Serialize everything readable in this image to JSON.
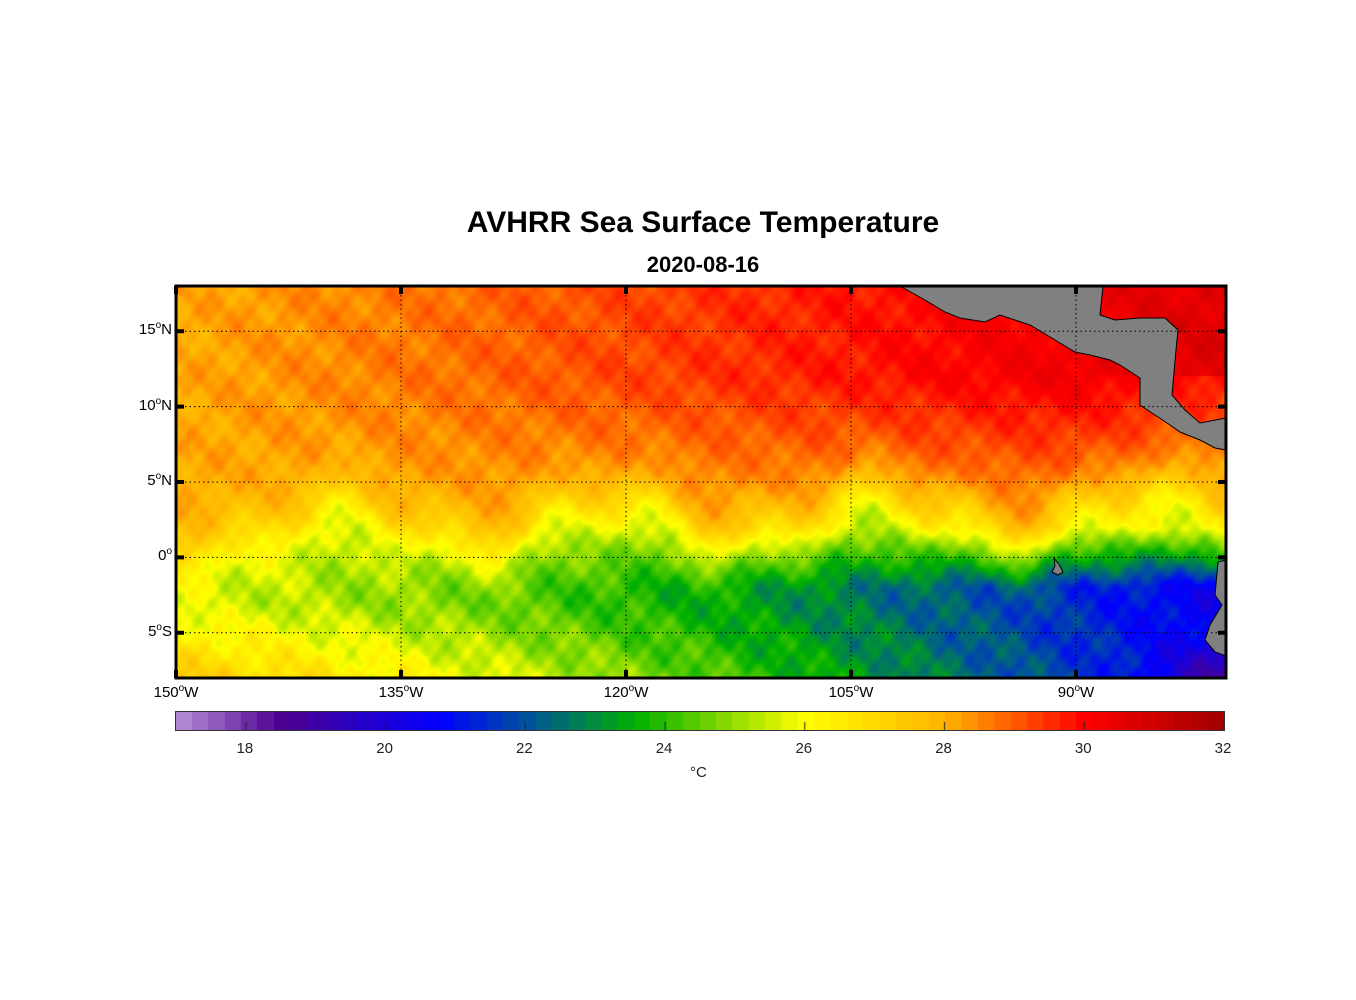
{
  "title": "AVHRR Sea Surface Temperature",
  "subtitle": "2020-08-16",
  "chart_data": {
    "type": "heatmap",
    "title": "AVHRR Sea Surface Temperature",
    "subtitle": "2020-08-16",
    "lon_range": [
      -150,
      -80
    ],
    "lat_range": [
      -8,
      18
    ],
    "x_ticks": [
      {
        "value": -150,
        "label": "150",
        "suffix": "W"
      },
      {
        "value": -135,
        "label": "135",
        "suffix": "W"
      },
      {
        "value": -120,
        "label": "120",
        "suffix": "W"
      },
      {
        "value": -105,
        "label": "105",
        "suffix": "W"
      },
      {
        "value": -90,
        "label": "90",
        "suffix": "W"
      }
    ],
    "y_ticks": [
      {
        "value": 15,
        "label": "15",
        "suffix": "N"
      },
      {
        "value": 10,
        "label": "10",
        "suffix": "N"
      },
      {
        "value": 5,
        "label": "5",
        "suffix": "N"
      },
      {
        "value": 0,
        "label": "0",
        "suffix": ""
      },
      {
        "value": -5,
        "label": "5",
        "suffix": "S"
      }
    ],
    "grid": true,
    "colorbar": {
      "range": [
        17,
        32
      ],
      "ticks": [
        "18",
        "20",
        "22",
        "24",
        "26",
        "28",
        "30",
        "32"
      ],
      "unit": "°C",
      "position": "bottom",
      "stops": [
        [
          17,
          "#b890d8"
        ],
        [
          18.5,
          "#4e0090"
        ],
        [
          20.8,
          "#0000ff"
        ],
        [
          22,
          "#0050a0"
        ],
        [
          23.6,
          "#00b000"
        ],
        [
          26,
          "#ffff00"
        ],
        [
          28,
          "#ffb400"
        ],
        [
          30,
          "#ff0000"
        ],
        [
          32,
          "#a00000"
        ]
      ]
    },
    "field_summary": {
      "north_of_5N": "28-30 °C, warmest (>30) near Central America coast",
      "equatorial_west": "24-26 °C",
      "equatorial_east_cold_tongue": "20-21 °C, minimum ~18 near 81W 7S"
    },
    "land_color": "#808080"
  }
}
